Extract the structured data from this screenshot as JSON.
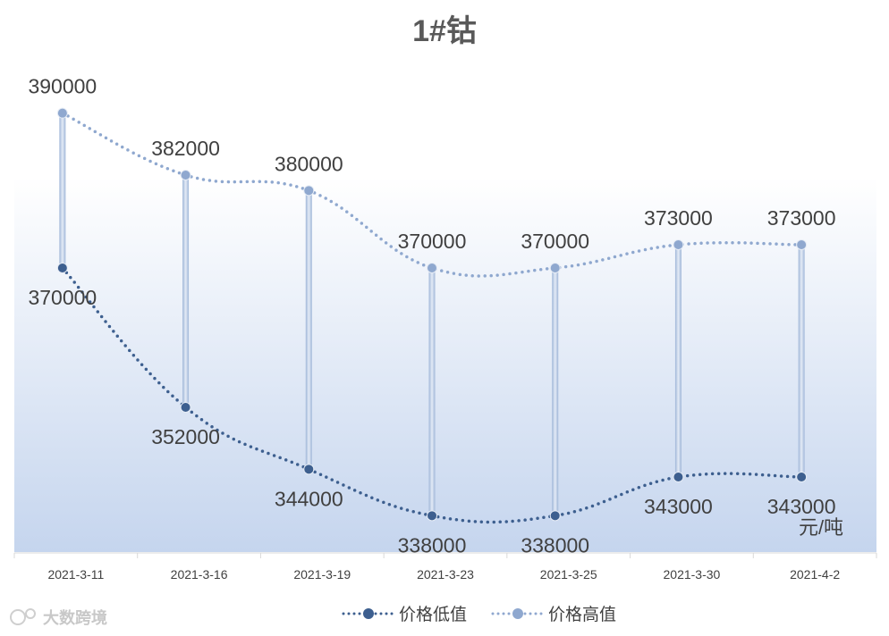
{
  "chart_data": {
    "type": "line",
    "title": "1#钴",
    "unit": "元/吨",
    "categories": [
      "2021-3-11",
      "2021-3-16",
      "2021-3-19",
      "2021-3-23",
      "2021-3-25",
      "2021-3-30",
      "2021-4-2"
    ],
    "series": [
      {
        "name": "价格低值",
        "values": [
          370000,
          352000,
          344000,
          338000,
          338000,
          343000,
          343000
        ],
        "color": "#3d5f8f"
      },
      {
        "name": "价格高值",
        "values": [
          390000,
          382000,
          380000,
          370000,
          370000,
          373000,
          373000
        ],
        "color": "#8fa8cf"
      }
    ],
    "ylim": [
      310000,
      400000
    ],
    "grid": false,
    "legend_position": "bottom",
    "high_low_lines": true,
    "background_gradient": [
      "#ffffff",
      "#c5d5ee"
    ]
  },
  "watermark": "大数跨境"
}
